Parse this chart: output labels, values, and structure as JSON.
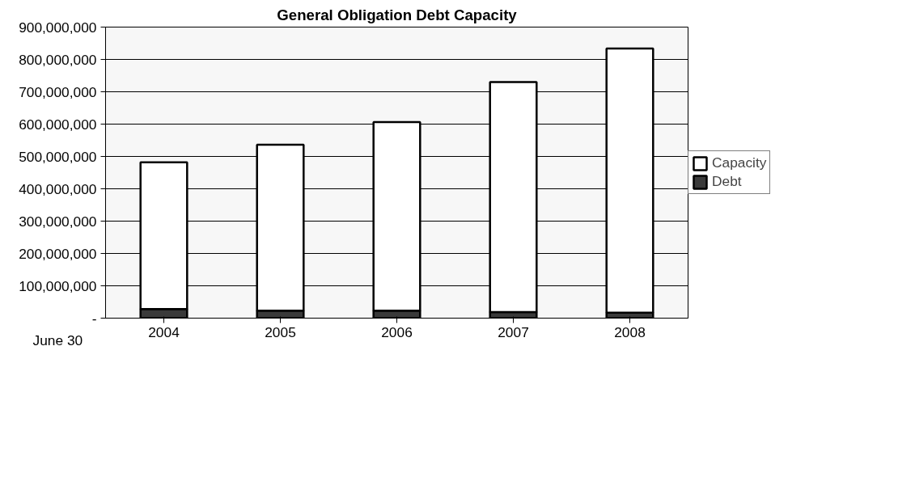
{
  "chart_data": {
    "type": "bar",
    "title": "General Obligation Debt Capacity",
    "xlabel": "June 30",
    "categories": [
      "2004",
      "2005",
      "2006",
      "2007",
      "2008"
    ],
    "stacked": true,
    "series": [
      {
        "name": "Debt",
        "color": "#3a3a3a",
        "values": [
          28000000,
          23000000,
          23000000,
          19000000,
          17000000
        ]
      },
      {
        "name": "Capacity",
        "color": "#ffffff",
        "values": [
          454000000,
          513000000,
          583000000,
          711000000,
          817000000
        ]
      }
    ],
    "ylim": [
      0,
      900000000
    ],
    "yticks": [
      {
        "value": 0,
        "label": "-"
      },
      {
        "value": 100000000,
        "label": "100,000,000"
      },
      {
        "value": 200000000,
        "label": "200,000,000"
      },
      {
        "value": 300000000,
        "label": "300,000,000"
      },
      {
        "value": 400000000,
        "label": "400,000,000"
      },
      {
        "value": 500000000,
        "label": "500,000,000"
      },
      {
        "value": 600000000,
        "label": "600,000,000"
      },
      {
        "value": 700000000,
        "label": "700,000,000"
      },
      {
        "value": 800000000,
        "label": "800,000,000"
      },
      {
        "value": 900000000,
        "label": "900,000,000"
      }
    ],
    "grid": "y",
    "legend": "right"
  }
}
